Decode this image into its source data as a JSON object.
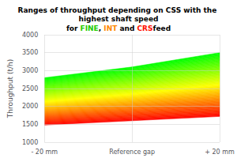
{
  "chart_data": {
    "type": "range_area",
    "title": "Ranges of throughput depending on CSS with the highest shaft speed",
    "subtitle": [
      {
        "text": "for ",
        "color": "black"
      },
      {
        "text": "FINE",
        "color": "#22cc00"
      },
      {
        "text": ", ",
        "color": "black"
      },
      {
        "text": "INT",
        "color": "#ff8800"
      },
      {
        "text": " and ",
        "color": "black"
      },
      {
        "text": "CRS",
        "color": "#ff1100"
      },
      {
        "text": "feed",
        "color": "black"
      }
    ],
    "ylabel": "Throughput (t/h)",
    "categories": [
      "- 20 mm",
      "Reference gap",
      "+ 20 mm"
    ],
    "low": [
      1480,
      1600,
      1720
    ],
    "high": [
      2800,
      3100,
      3500
    ],
    "colors": [
      "#ff0000",
      "#ffff00",
      "#00ff00"
    ],
    "ylim": [
      1000,
      4000
    ],
    "yticks": [
      1000,
      1500,
      2000,
      2500,
      3000,
      3500,
      4000
    ],
    "grid": true
  }
}
